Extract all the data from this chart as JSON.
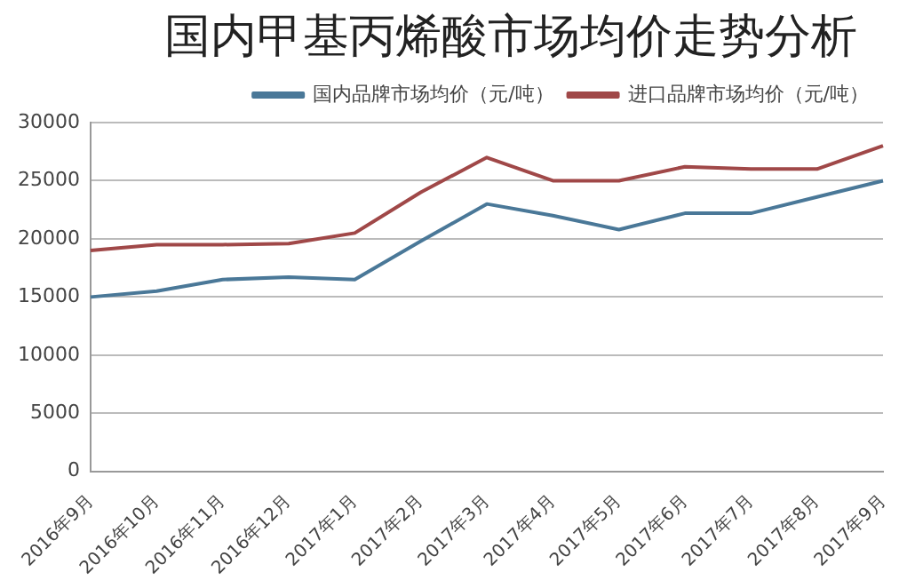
{
  "chart_data": {
    "type": "line",
    "title": "国内甲基丙烯酸市场均价走势分析",
    "categories": [
      "2016年9月",
      "2016年10月",
      "2016年11月",
      "2016年12月",
      "2017年1月",
      "2017年2月",
      "2017年3月",
      "2017年4月",
      "2017年5月",
      "2017年6月",
      "2017年7月",
      "2017年8月",
      "2017年9月"
    ],
    "series": [
      {
        "name": "国内品牌市场均价（元/吨）",
        "color": "#4a7898",
        "values": [
          15000,
          15500,
          16500,
          16700,
          16500,
          19800,
          23000,
          22000,
          20800,
          22200,
          22200,
          23600,
          25000
        ]
      },
      {
        "name": "进口品牌市场均价（元/吨）",
        "color": "#a04848",
        "values": [
          19000,
          19500,
          19500,
          19600,
          20500,
          24000,
          27000,
          25000,
          25000,
          26200,
          26000,
          26000,
          28000
        ]
      }
    ],
    "ylim": [
      0,
      30000
    ],
    "yticks": [
      0,
      5000,
      10000,
      15000,
      20000,
      25000,
      30000
    ],
    "grid": "y",
    "legend": "top",
    "marker": "none"
  }
}
